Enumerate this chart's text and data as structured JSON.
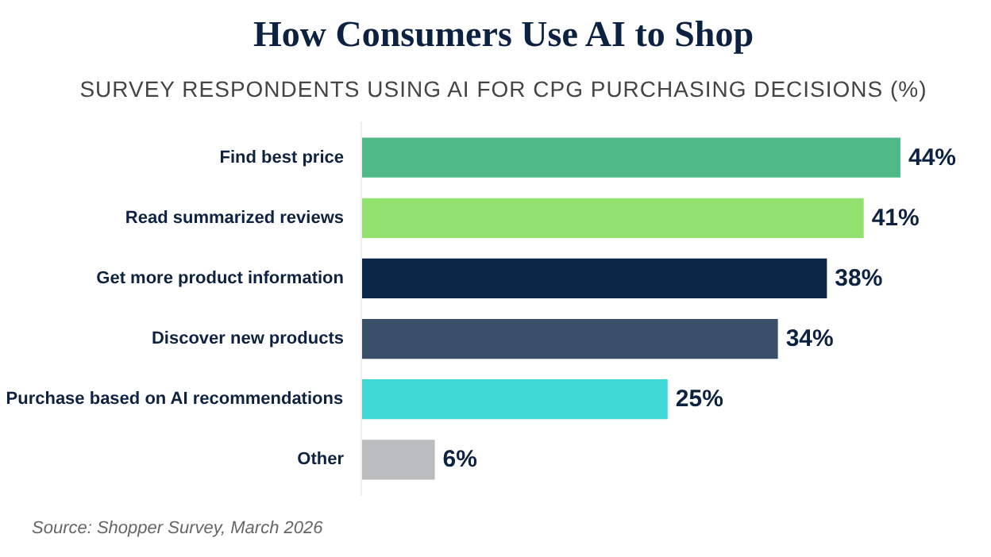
{
  "chart_data": {
    "type": "bar",
    "orientation": "horizontal",
    "title": "How Consumers Use AI to Shop",
    "subtitle": "SURVEY RESPONDENTS USING AI FOR CPG PURCHASING DECISIONS (%)",
    "categories": [
      "Find best price",
      "Read summarized reviews",
      "Get more product information",
      "Discover new products",
      "Purchase based on AI recommendations",
      "Other"
    ],
    "values": [
      44,
      41,
      38,
      34,
      25,
      6
    ],
    "colors": [
      "#4fba87",
      "#93e26f",
      "#0a2646",
      "#3a5068",
      "#3fd8d4",
      "#bbbcbe"
    ],
    "value_labels": [
      "44%",
      "41%",
      "38%",
      "34%",
      "25%",
      "6%"
    ],
    "annotations": [
      "Source: Shopper Survey, March 2026"
    ],
    "grid": false
  }
}
